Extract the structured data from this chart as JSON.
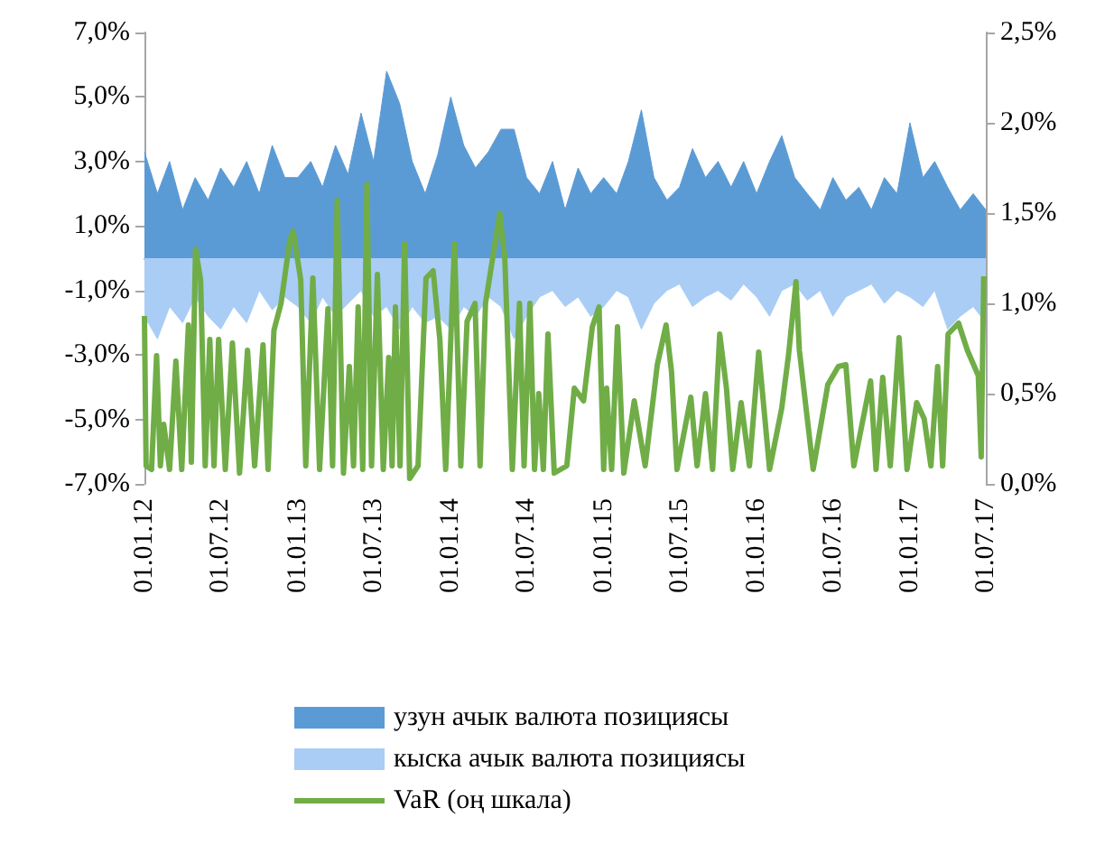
{
  "chart_data": {
    "type": "area",
    "x": [
      "2012-01",
      "2012-02",
      "2012-03",
      "2012-04",
      "2012-05",
      "2012-06",
      "2012-07",
      "2012-08",
      "2012-09",
      "2012-10",
      "2012-11",
      "2012-12",
      "2013-01",
      "2013-02",
      "2013-03",
      "2013-04",
      "2013-05",
      "2013-06",
      "2013-07",
      "2013-08",
      "2013-09",
      "2013-10",
      "2013-11",
      "2013-12",
      "2014-01",
      "2014-02",
      "2014-03",
      "2014-04",
      "2014-05",
      "2014-06",
      "2014-07",
      "2014-08",
      "2014-09",
      "2014-10",
      "2014-11",
      "2014-12",
      "2015-01",
      "2015-02",
      "2015-03",
      "2015-04",
      "2015-05",
      "2015-06",
      "2015-07",
      "2015-08",
      "2015-09",
      "2015-10",
      "2015-11",
      "2015-12",
      "2016-01",
      "2016-02",
      "2016-03",
      "2016-04",
      "2016-05",
      "2016-06",
      "2016-07",
      "2016-08",
      "2016-09",
      "2016-10",
      "2016-11",
      "2016-12",
      "2017-01",
      "2017-02",
      "2017-03",
      "2017-04",
      "2017-05",
      "2017-06",
      "2017-07"
    ],
    "series": [
      {
        "name": "узун ачык валюта позициясы",
        "color": "#5b9bd5",
        "values": [
          3.3,
          2.0,
          3.0,
          1.5,
          2.5,
          1.8,
          2.8,
          2.2,
          3.0,
          2.0,
          3.5,
          2.5,
          2.5,
          3.0,
          2.2,
          3.5,
          2.6,
          4.5,
          3.0,
          5.8,
          4.8,
          3.0,
          2.0,
          3.2,
          5.0,
          3.5,
          2.8,
          3.3,
          4.0,
          4.0,
          2.5,
          2.0,
          3.0,
          1.5,
          2.8,
          2.0,
          2.5,
          2.0,
          3.0,
          4.6,
          2.5,
          1.8,
          2.2,
          3.4,
          2.5,
          3.0,
          2.2,
          3.0,
          2.0,
          3.0,
          3.8,
          2.5,
          2.0,
          1.5,
          2.5,
          1.8,
          2.2,
          1.5,
          2.5,
          2.0,
          4.2,
          2.5,
          3.0,
          2.2,
          1.5,
          2.0,
          1.5
        ]
      },
      {
        "name": "кыска ачык валюта позициясы",
        "color": "#a9cdf5",
        "values": [
          -1.8,
          -2.5,
          -1.5,
          -2.0,
          -1.2,
          -1.8,
          -2.2,
          -1.5,
          -2.0,
          -1.0,
          -1.6,
          -1.2,
          -1.5,
          -2.0,
          -1.2,
          -1.8,
          -1.4,
          -1.0,
          -1.8,
          -1.5,
          -2.2,
          -1.5,
          -2.0,
          -1.8,
          -2.2,
          -1.5,
          -1.8,
          -1.2,
          -1.5,
          -2.5,
          -1.8,
          -1.2,
          -1.0,
          -1.5,
          -1.2,
          -1.8,
          -1.5,
          -1.0,
          -1.2,
          -2.2,
          -1.4,
          -1.0,
          -0.8,
          -1.5,
          -1.2,
          -1.0,
          -1.3,
          -0.8,
          -1.2,
          -1.8,
          -1.0,
          -0.8,
          -1.3,
          -1.0,
          -1.8,
          -1.2,
          -1.0,
          -0.8,
          -1.4,
          -1.0,
          -1.2,
          -1.5,
          -1.0,
          -2.2,
          -1.8,
          -1.5,
          -2.0
        ]
      },
      {
        "type": "line",
        "axis": "y2",
        "name": "VaR (оң шкала)",
        "color": "#70ad47",
        "x": [
          "2012-01-01",
          "2012-01-05",
          "2012-01-18",
          "2012-01-30",
          "2012-02-08",
          "2012-02-16",
          "2012-03-01",
          "2012-03-16",
          "2012-03-30",
          "2012-04-15",
          "2012-04-22",
          "2012-05-02",
          "2012-05-14",
          "2012-05-25",
          "2012-06-05",
          "2012-06-15",
          "2012-06-26",
          "2012-07-12",
          "2012-07-29",
          "2012-08-15",
          "2012-09-03",
          "2012-09-20",
          "2012-10-10",
          "2012-10-22",
          "2012-11-05",
          "2012-11-22",
          "2012-12-13",
          "2012-12-21",
          "2013-01-08",
          "2013-01-20",
          "2013-02-06",
          "2013-02-22",
          "2013-03-14",
          "2013-03-25",
          "2013-04-05",
          "2013-04-20",
          "2013-05-04",
          "2013-05-14",
          "2013-05-25",
          "2013-06-05",
          "2013-06-15",
          "2013-06-26",
          "2013-07-10",
          "2013-07-24",
          "2013-08-06",
          "2013-08-14",
          "2013-08-22",
          "2013-09-02",
          "2013-09-13",
          "2013-09-25",
          "2013-10-15",
          "2013-11-03",
          "2013-11-20",
          "2013-12-06",
          "2013-12-20",
          "2014-01-10",
          "2014-01-25",
          "2014-02-09",
          "2014-02-28",
          "2014-03-12",
          "2014-03-25",
          "2014-04-11",
          "2014-04-28",
          "2014-05-10",
          "2014-05-28",
          "2014-06-14",
          "2014-06-25",
          "2014-07-09",
          "2014-07-20",
          "2014-07-30",
          "2014-08-10",
          "2014-08-21",
          "2014-09-05",
          "2014-10-05",
          "2014-10-23",
          "2014-11-14",
          "2014-12-05",
          "2014-12-21",
          "2015-01-01",
          "2015-01-08",
          "2015-01-20",
          "2015-02-03",
          "2015-02-18",
          "2015-03-15",
          "2015-04-10",
          "2015-05-09",
          "2015-05-30",
          "2015-06-12",
          "2015-06-25",
          "2015-07-28",
          "2015-08-12",
          "2015-09-01",
          "2015-09-18",
          "2015-10-05",
          "2015-10-21",
          "2015-11-05",
          "2015-11-25",
          "2015-12-15",
          "2016-01-06",
          "2016-02-01",
          "2016-03-01",
          "2016-03-17",
          "2016-04-04",
          "2016-04-12",
          "2016-05-15",
          "2016-06-19",
          "2016-07-14",
          "2016-08-01",
          "2016-08-20",
          "2016-09-29",
          "2016-10-12",
          "2016-10-28",
          "2016-11-15",
          "2016-12-06",
          "2016-12-25",
          "2017-01-17",
          "2017-02-04",
          "2017-02-20",
          "2017-03-08",
          "2017-03-20",
          "2017-04-02",
          "2017-04-27",
          "2017-05-18",
          "2017-06-13",
          "2017-06-20",
          "2017-06-26"
        ],
        "values": [
          0.93,
          0.1,
          0.08,
          0.71,
          0.1,
          0.33,
          0.08,
          0.68,
          0.08,
          0.88,
          0.12,
          1.3,
          1.13,
          0.1,
          0.8,
          0.1,
          0.8,
          0.08,
          0.78,
          0.06,
          0.74,
          0.1,
          0.77,
          0.08,
          0.85,
          1.0,
          1.35,
          1.4,
          1.13,
          0.1,
          1.14,
          0.08,
          0.97,
          0.1,
          1.57,
          0.06,
          0.65,
          0.1,
          0.98,
          0.08,
          1.66,
          0.1,
          1.16,
          0.08,
          0.7,
          0.1,
          0.98,
          0.1,
          1.33,
          0.03,
          0.1,
          1.14,
          1.18,
          0.8,
          0.08,
          1.33,
          0.1,
          0.9,
          1.0,
          0.1,
          1.0,
          1.25,
          1.5,
          1.25,
          0.08,
          1.0,
          0.1,
          1.0,
          0.08,
          0.5,
          0.08,
          0.83,
          0.06,
          0.1,
          0.53,
          0.46,
          0.87,
          0.98,
          0.08,
          0.53,
          0.08,
          0.87,
          0.06,
          0.46,
          0.1,
          0.66,
          0.88,
          0.62,
          0.08,
          0.48,
          0.1,
          0.5,
          0.08,
          0.83,
          0.53,
          0.08,
          0.45,
          0.1,
          0.73,
          0.08,
          0.42,
          0.71,
          1.12,
          0.74,
          0.08,
          0.55,
          0.65,
          0.66,
          0.1,
          0.57,
          0.08,
          0.59,
          0.1,
          0.81,
          0.08,
          0.45,
          0.36,
          0.1,
          0.65,
          0.1,
          0.83,
          0.89,
          0.74,
          0.6,
          0.15,
          1.15
        ]
      }
    ],
    "xlim": [
      "2012-01-01",
      "2017-07-01"
    ],
    "xticks": [
      {
        "value": "2012-01-01",
        "label": "01.01.12"
      },
      {
        "value": "2012-07-01",
        "label": "01.07.12"
      },
      {
        "value": "2013-01-01",
        "label": "01.01.13"
      },
      {
        "value": "2013-07-01",
        "label": "01.07.13"
      },
      {
        "value": "2014-01-01",
        "label": "01.01.14"
      },
      {
        "value": "2014-07-01",
        "label": "01.07.14"
      },
      {
        "value": "2015-01-01",
        "label": "01.01.15"
      },
      {
        "value": "2015-07-01",
        "label": "01.07.15"
      },
      {
        "value": "2016-01-01",
        "label": "01.01.16"
      },
      {
        "value": "2016-07-01",
        "label": "01.07.16"
      },
      {
        "value": "2017-01-01",
        "label": "01.01.17"
      },
      {
        "value": "2017-07-01",
        "label": "01.07.17"
      }
    ],
    "ylim": [
      -7,
      7
    ],
    "yticks": [
      {
        "value": -7,
        "label": "-7,0%"
      },
      {
        "value": -5,
        "label": "-5,0%"
      },
      {
        "value": -3,
        "label": "-3,0%"
      },
      {
        "value": -1,
        "label": "-1,0%"
      },
      {
        "value": 1,
        "label": "1,0%"
      },
      {
        "value": 3,
        "label": "3,0%"
      },
      {
        "value": 5,
        "label": "5,0%"
      },
      {
        "value": 7,
        "label": "7,0%"
      }
    ],
    "y2lim": [
      0,
      2.5
    ],
    "y2ticks": [
      {
        "value": 0,
        "label": "0,0%"
      },
      {
        "value": 0.5,
        "label": "0,5%"
      },
      {
        "value": 1,
        "label": "1,0%"
      },
      {
        "value": 1.5,
        "label": "1,5%"
      },
      {
        "value": 2,
        "label": "2,0%"
      },
      {
        "value": 2.5,
        "label": "2,5%"
      }
    ],
    "grid": false,
    "legend": "bottom"
  }
}
